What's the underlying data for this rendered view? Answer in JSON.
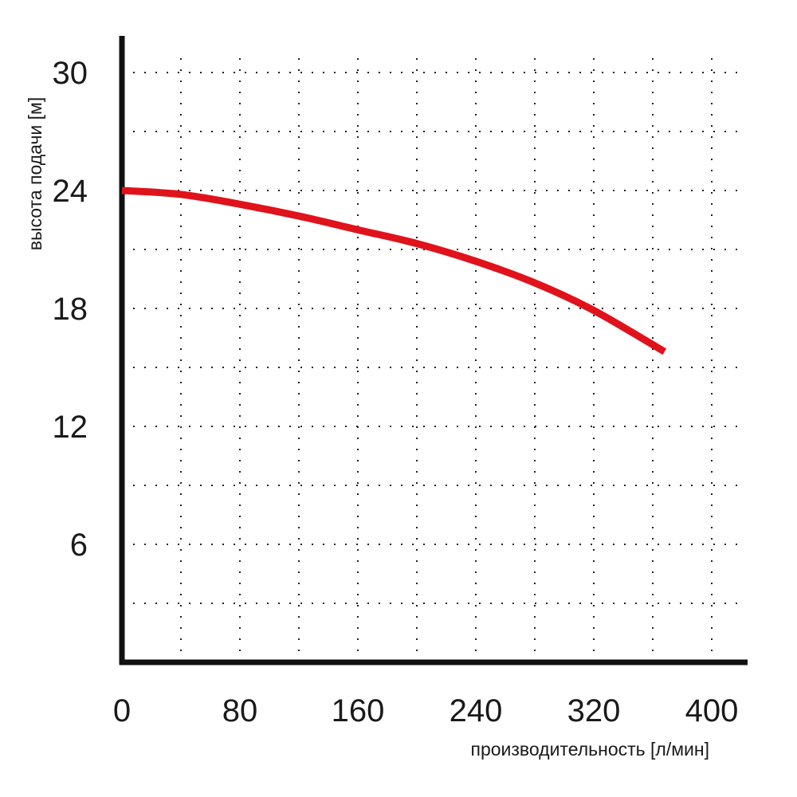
{
  "chart_data": {
    "type": "line",
    "xlabel": "производительность [л/мин]",
    "ylabel": "высота подачи [м]",
    "xlim": [
      0,
      420
    ],
    "ylim": [
      0,
      32
    ],
    "x_ticks": [
      0,
      80,
      160,
      240,
      320,
      400
    ],
    "y_ticks": [
      6,
      12,
      18,
      24,
      30
    ],
    "grid": true,
    "grid_style": "dotted",
    "series": [
      {
        "color": "#e0121b",
        "x": [
          0,
          40,
          80,
          120,
          160,
          200,
          240,
          280,
          320,
          368
        ],
        "y": [
          24.0,
          23.8,
          23.3,
          22.7,
          22.0,
          21.3,
          20.4,
          19.3,
          17.9,
          15.8
        ]
      }
    ]
  }
}
